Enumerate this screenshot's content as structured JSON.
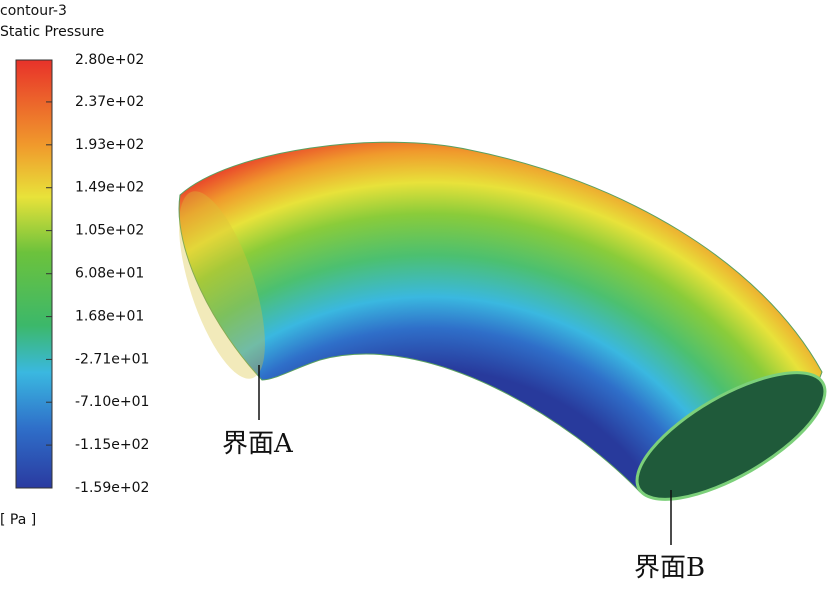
{
  "legend": {
    "title": "contour-3",
    "variable": "Static Pressure",
    "range": [
      -159,
      280
    ],
    "ticks": [
      {
        "value": 280,
        "label": "2.80e+02"
      },
      {
        "value": 237,
        "label": "2.37e+02"
      },
      {
        "value": 193,
        "label": "1.93e+02"
      },
      {
        "value": 149,
        "label": "1.49e+02"
      },
      {
        "value": 105,
        "label": "1.05e+02"
      },
      {
        "value": 60.8,
        "label": "6.08e+01"
      },
      {
        "value": 16.8,
        "label": "1.68e+01"
      },
      {
        "value": -27.1,
        "label": "-2.71e+01"
      },
      {
        "value": -71,
        "label": "-7.10e+01"
      },
      {
        "value": -115,
        "label": "-1.15e+02"
      },
      {
        "value": -159,
        "label": "-1.59e+02"
      }
    ],
    "unit": "[ Pa ]"
  },
  "annotations": {
    "interface_a": "界面A",
    "interface_b": "界面B"
  }
}
